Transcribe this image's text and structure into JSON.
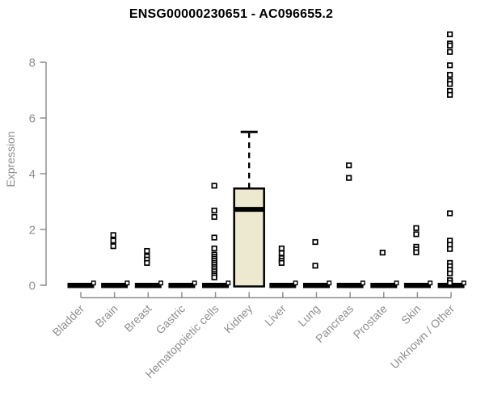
{
  "chart_data": {
    "type": "box",
    "title": "ENSG00000230651 - AC096655.2",
    "ylabel": "Expression",
    "ylim": [
      0,
      9.2
    ],
    "yticks": [
      0,
      2,
      4,
      6,
      8
    ],
    "grid": false,
    "legend": "none",
    "categories": [
      "Bladder",
      "Brain",
      "Breast",
      "Gastric",
      "Hematopoietic cells",
      "Kidney",
      "Liver",
      "Lung",
      "Pancreas",
      "Prostate",
      "Skin",
      "Unknown / Other"
    ],
    "boxes": [
      {
        "label": "Bladder",
        "collapsed": true,
        "q1": 0,
        "median": 0,
        "q3": 0,
        "whisker_low": 0,
        "whisker_high": 0,
        "outliers": []
      },
      {
        "label": "Brain",
        "collapsed": true,
        "q1": 0,
        "median": 0,
        "q3": 0,
        "whisker_low": 0,
        "whisker_high": 0,
        "outliers": [
          1.8,
          1.6,
          1.4
        ]
      },
      {
        "label": "Breast",
        "collapsed": true,
        "q1": 0,
        "median": 0,
        "q3": 0,
        "whisker_low": 0,
        "whisker_high": 0,
        "outliers": [
          1.23,
          1.03,
          0.92,
          0.8
        ]
      },
      {
        "label": "Gastric",
        "collapsed": true,
        "q1": 0,
        "median": 0,
        "q3": 0,
        "whisker_low": 0,
        "whisker_high": 0,
        "outliers": []
      },
      {
        "label": "Hematopoietic cells",
        "collapsed": true,
        "q1": 0,
        "median": 0,
        "q3": 0,
        "whisker_low": 0,
        "whisker_high": 0,
        "outliers": [
          3.57,
          2.68,
          2.45,
          1.71,
          1.32,
          1.1,
          1.02,
          0.95,
          0.88,
          0.8,
          0.73,
          0.65,
          0.58,
          0.5,
          0.42,
          0.35,
          0.28
        ]
      },
      {
        "label": "Kidney",
        "collapsed": false,
        "q1": 0,
        "median": 2.72,
        "q3": 3.47,
        "whisker_low": 0,
        "whisker_high": 5.5,
        "outliers": []
      },
      {
        "label": "Liver",
        "collapsed": true,
        "q1": 0,
        "median": 0,
        "q3": 0,
        "whisker_low": 0,
        "whisker_high": 0,
        "outliers": [
          1.32,
          1.15,
          0.97,
          0.88,
          0.8
        ]
      },
      {
        "label": "Lung",
        "collapsed": true,
        "q1": 0,
        "median": 0,
        "q3": 0,
        "whisker_low": 0,
        "whisker_high": 0,
        "outliers": [
          1.55,
          0.7
        ]
      },
      {
        "label": "Pancreas",
        "collapsed": true,
        "q1": 0,
        "median": 0,
        "q3": 0,
        "whisker_low": 0,
        "whisker_high": 0,
        "outliers": [
          4.3,
          3.85
        ]
      },
      {
        "label": "Prostate",
        "collapsed": true,
        "q1": 0,
        "median": 0,
        "q3": 0,
        "whisker_low": 0,
        "whisker_high": 0,
        "outliers": [
          1.17
        ]
      },
      {
        "label": "Skin",
        "collapsed": true,
        "q1": 0,
        "median": 0,
        "q3": 0,
        "whisker_low": 0,
        "whisker_high": 0,
        "outliers": [
          2.05,
          1.83,
          1.38,
          1.28,
          1.18
        ]
      },
      {
        "label": "Unknown / Other",
        "collapsed": true,
        "q1": 0,
        "median": 0,
        "q3": 0,
        "whisker_low": 0,
        "whisker_high": 0,
        "outliers": [
          9.0,
          8.67,
          8.6,
          8.37,
          7.89,
          7.55,
          7.33,
          7.22,
          6.97,
          6.83,
          2.58,
          1.6,
          1.45,
          1.3,
          0.8,
          0.68,
          0.55,
          0.42,
          0.18,
          0.08
        ]
      }
    ],
    "colors": {
      "box_fill": "#EDE8D0",
      "marks": "#000000",
      "axis": "#8f8f8f",
      "title": "#000000",
      "background": "#ffffff"
    }
  }
}
